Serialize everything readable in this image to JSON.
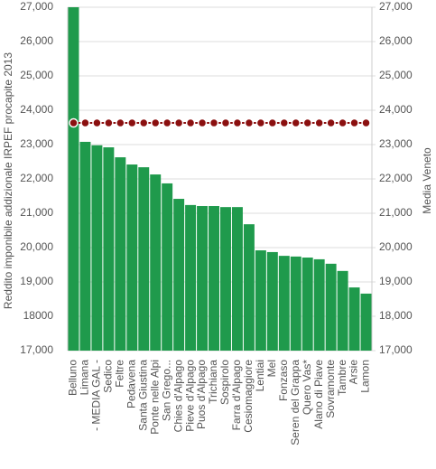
{
  "chart_data": {
    "type": "bar",
    "ylabel": "Reddito imponibile addizionale IRPEF procapite 2013",
    "y2label": "Media Veneto",
    "categories": [
      "Belluno",
      "Limana",
      "- MEDIA GAL -",
      "Sedico",
      "Feltre",
      "Pedavena",
      "Santa Giustina",
      "Ponte nelle Alpi",
      "San Grego...",
      "Chies d'Alpago",
      "Pieve d'Alpago",
      "Puos d'Alpago",
      "Trichiana",
      "Sospirolo",
      "Farra d'Alpago",
      "Cesiomaggiore",
      "Lentiai",
      "Mel",
      "Fonzaso",
      "Seren del Grappa",
      "Quero Vas*",
      "Alano di Piave",
      "Sovramonte",
      "Tambre",
      "Arsie",
      "Lamon"
    ],
    "series": [
      {
        "color": "#1f9a4c",
        "values": [
          27000,
          23080,
          22980,
          22920,
          22630,
          22420,
          22340,
          22130,
          21870,
          21420,
          21240,
          21210,
          21210,
          21180,
          21180,
          20680,
          19920,
          19870,
          19760,
          19740,
          19710,
          19660,
          19530,
          19320,
          18840,
          18660
        ]
      },
      {
        "color": "#8b1010",
        "axis": "y2",
        "values": [
          23630,
          23630,
          23630,
          23630,
          23630,
          23630,
          23630,
          23630,
          23630,
          23630,
          23630,
          23630,
          23630,
          23630,
          23630,
          23630,
          23630,
          23630,
          23630,
          23630,
          23630,
          23630,
          23630,
          23630,
          23630,
          23630
        ]
      }
    ],
    "ylim": [
      17000,
      27000
    ],
    "yticks": [
      {
        "value": 17000,
        "label": "17,000"
      },
      {
        "value": 18000,
        "label": "18000"
      },
      {
        "value": 19000,
        "label": "19,000"
      },
      {
        "value": 20000,
        "label": "20,000"
      },
      {
        "value": 21000,
        "label": "21,000"
      },
      {
        "value": 22000,
        "label": "22,000"
      },
      {
        "value": 23000,
        "label": "23,000"
      },
      {
        "value": 24000,
        "label": "24,000"
      },
      {
        "value": 25000,
        "label": "25,000"
      },
      {
        "value": 26000,
        "label": "26,000"
      },
      {
        "value": 27000,
        "label": "27,000"
      }
    ],
    "y2lim": [
      17000,
      27000
    ],
    "y2ticks": [
      {
        "value": 17000,
        "label": "17,000"
      },
      {
        "value": 18000,
        "label": "18,000"
      },
      {
        "value": 19000,
        "label": "19,000"
      },
      {
        "value": 20000,
        "label": "20,000"
      },
      {
        "value": 21000,
        "label": "21,000"
      },
      {
        "value": 22000,
        "label": "22,000"
      },
      {
        "value": 23000,
        "label": "23,000"
      },
      {
        "value": 24000,
        "label": "24,000"
      },
      {
        "value": 25000,
        "label": "25,000"
      },
      {
        "value": 26000,
        "label": "26,000"
      },
      {
        "value": 27000,
        "label": "27,000"
      }
    ],
    "grid": true
  }
}
